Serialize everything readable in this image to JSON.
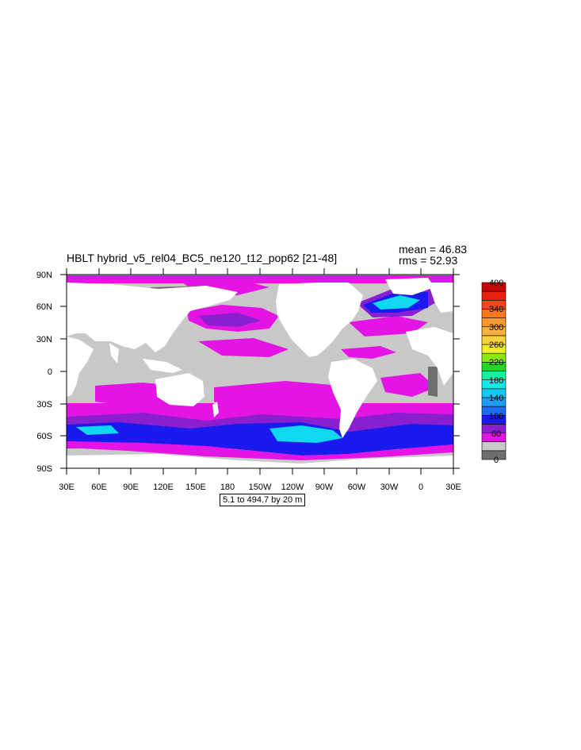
{
  "title": "HBLT hybrid_v5_rel04_BC5_ne120_t12_pop62 [21-48]",
  "stats": {
    "mean": "mean = 46.83",
    "rms": "rms = 52.93"
  },
  "info_box": "5.1 to 494.7 by 20 m",
  "map": {
    "lat_ticks": [
      "90N",
      "60N",
      "30N",
      "0",
      "30S",
      "60S",
      "90S"
    ],
    "lon_ticks": [
      "30E",
      "60E",
      "90E",
      "120E",
      "150E",
      "180",
      "150W",
      "120W",
      "90W",
      "60W",
      "30W",
      "0",
      "30E"
    ],
    "land_color": "#ffffff",
    "colors": {
      "dark_gray": "#6e6e6e",
      "light_gray": "#c8c8c8",
      "magenta": "#e415e4",
      "purple": "#8a1fd0",
      "blue": "#1a1aee",
      "cyan": "#10d8f0"
    }
  },
  "colorbar": {
    "colors": [
      "#6e6e6e",
      "#c8c8c8",
      "#e415e4",
      "#8a1fd0",
      "#1a1aee",
      "#1e6cf0",
      "#1e9cf4",
      "#18c8f4",
      "#10e8e8",
      "#1aeea0",
      "#22d822",
      "#8ae810",
      "#f0f020",
      "#f8d040",
      "#f8b040",
      "#f89a30",
      "#f87820",
      "#f04818",
      "#e42010",
      "#c80808"
    ],
    "labels": [
      "0",
      "60",
      "100",
      "140",
      "180",
      "220",
      "260",
      "300",
      "340",
      "400"
    ]
  }
}
